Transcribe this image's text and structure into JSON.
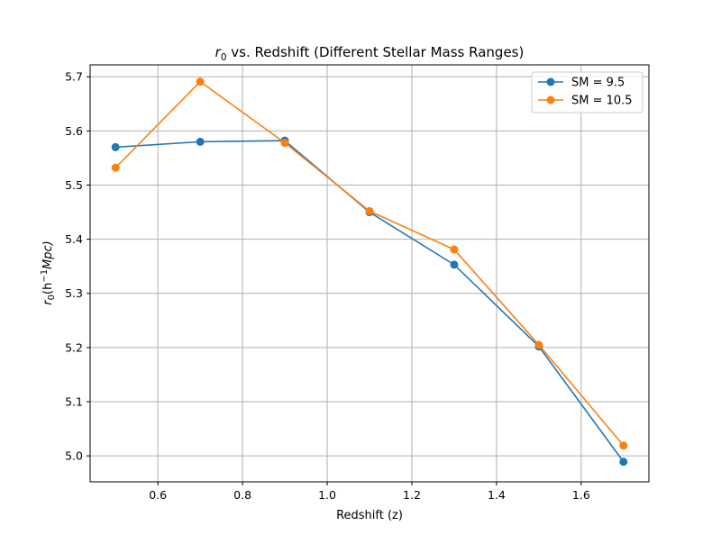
{
  "chart_data": {
    "type": "line",
    "title_prefix": "r",
    "title_sub": "0",
    "title_suffix": " vs. Redshift (Different Stellar Mass Ranges)",
    "xlabel": "Redshift (z)",
    "ylabel_main": "r",
    "ylabel_sub": "0",
    "ylabel_rest": "(h",
    "ylabel_sup": "−1",
    "ylabel_end": "Mpc)",
    "xlim": [
      0.44,
      1.76
    ],
    "ylim": [
      4.952,
      5.722
    ],
    "x_ticks": [
      0.6,
      0.8,
      1.0,
      1.2,
      1.4,
      1.6
    ],
    "x_tick_labels": [
      "0.6",
      "0.8",
      "1.0",
      "1.2",
      "1.4",
      "1.6"
    ],
    "y_ticks": [
      5.0,
      5.1,
      5.2,
      5.3,
      5.4,
      5.5,
      5.6,
      5.7
    ],
    "y_tick_labels": [
      "5.0",
      "5.1",
      "5.2",
      "5.3",
      "5.4",
      "5.5",
      "5.6",
      "5.7"
    ],
    "grid": true,
    "legend_position": "top-right",
    "x": [
      0.5,
      0.7,
      0.9,
      1.1,
      1.3,
      1.5,
      1.7
    ],
    "series": [
      {
        "name": "SM = 9.5",
        "color": "#1f77b4",
        "values": [
          5.57,
          5.58,
          5.582,
          5.45,
          5.353,
          5.202,
          4.989
        ]
      },
      {
        "name": "SM = 10.5",
        "color": "#ff7f0e",
        "values": [
          5.532,
          5.691,
          5.578,
          5.452,
          5.381,
          5.205,
          5.019
        ]
      }
    ]
  }
}
